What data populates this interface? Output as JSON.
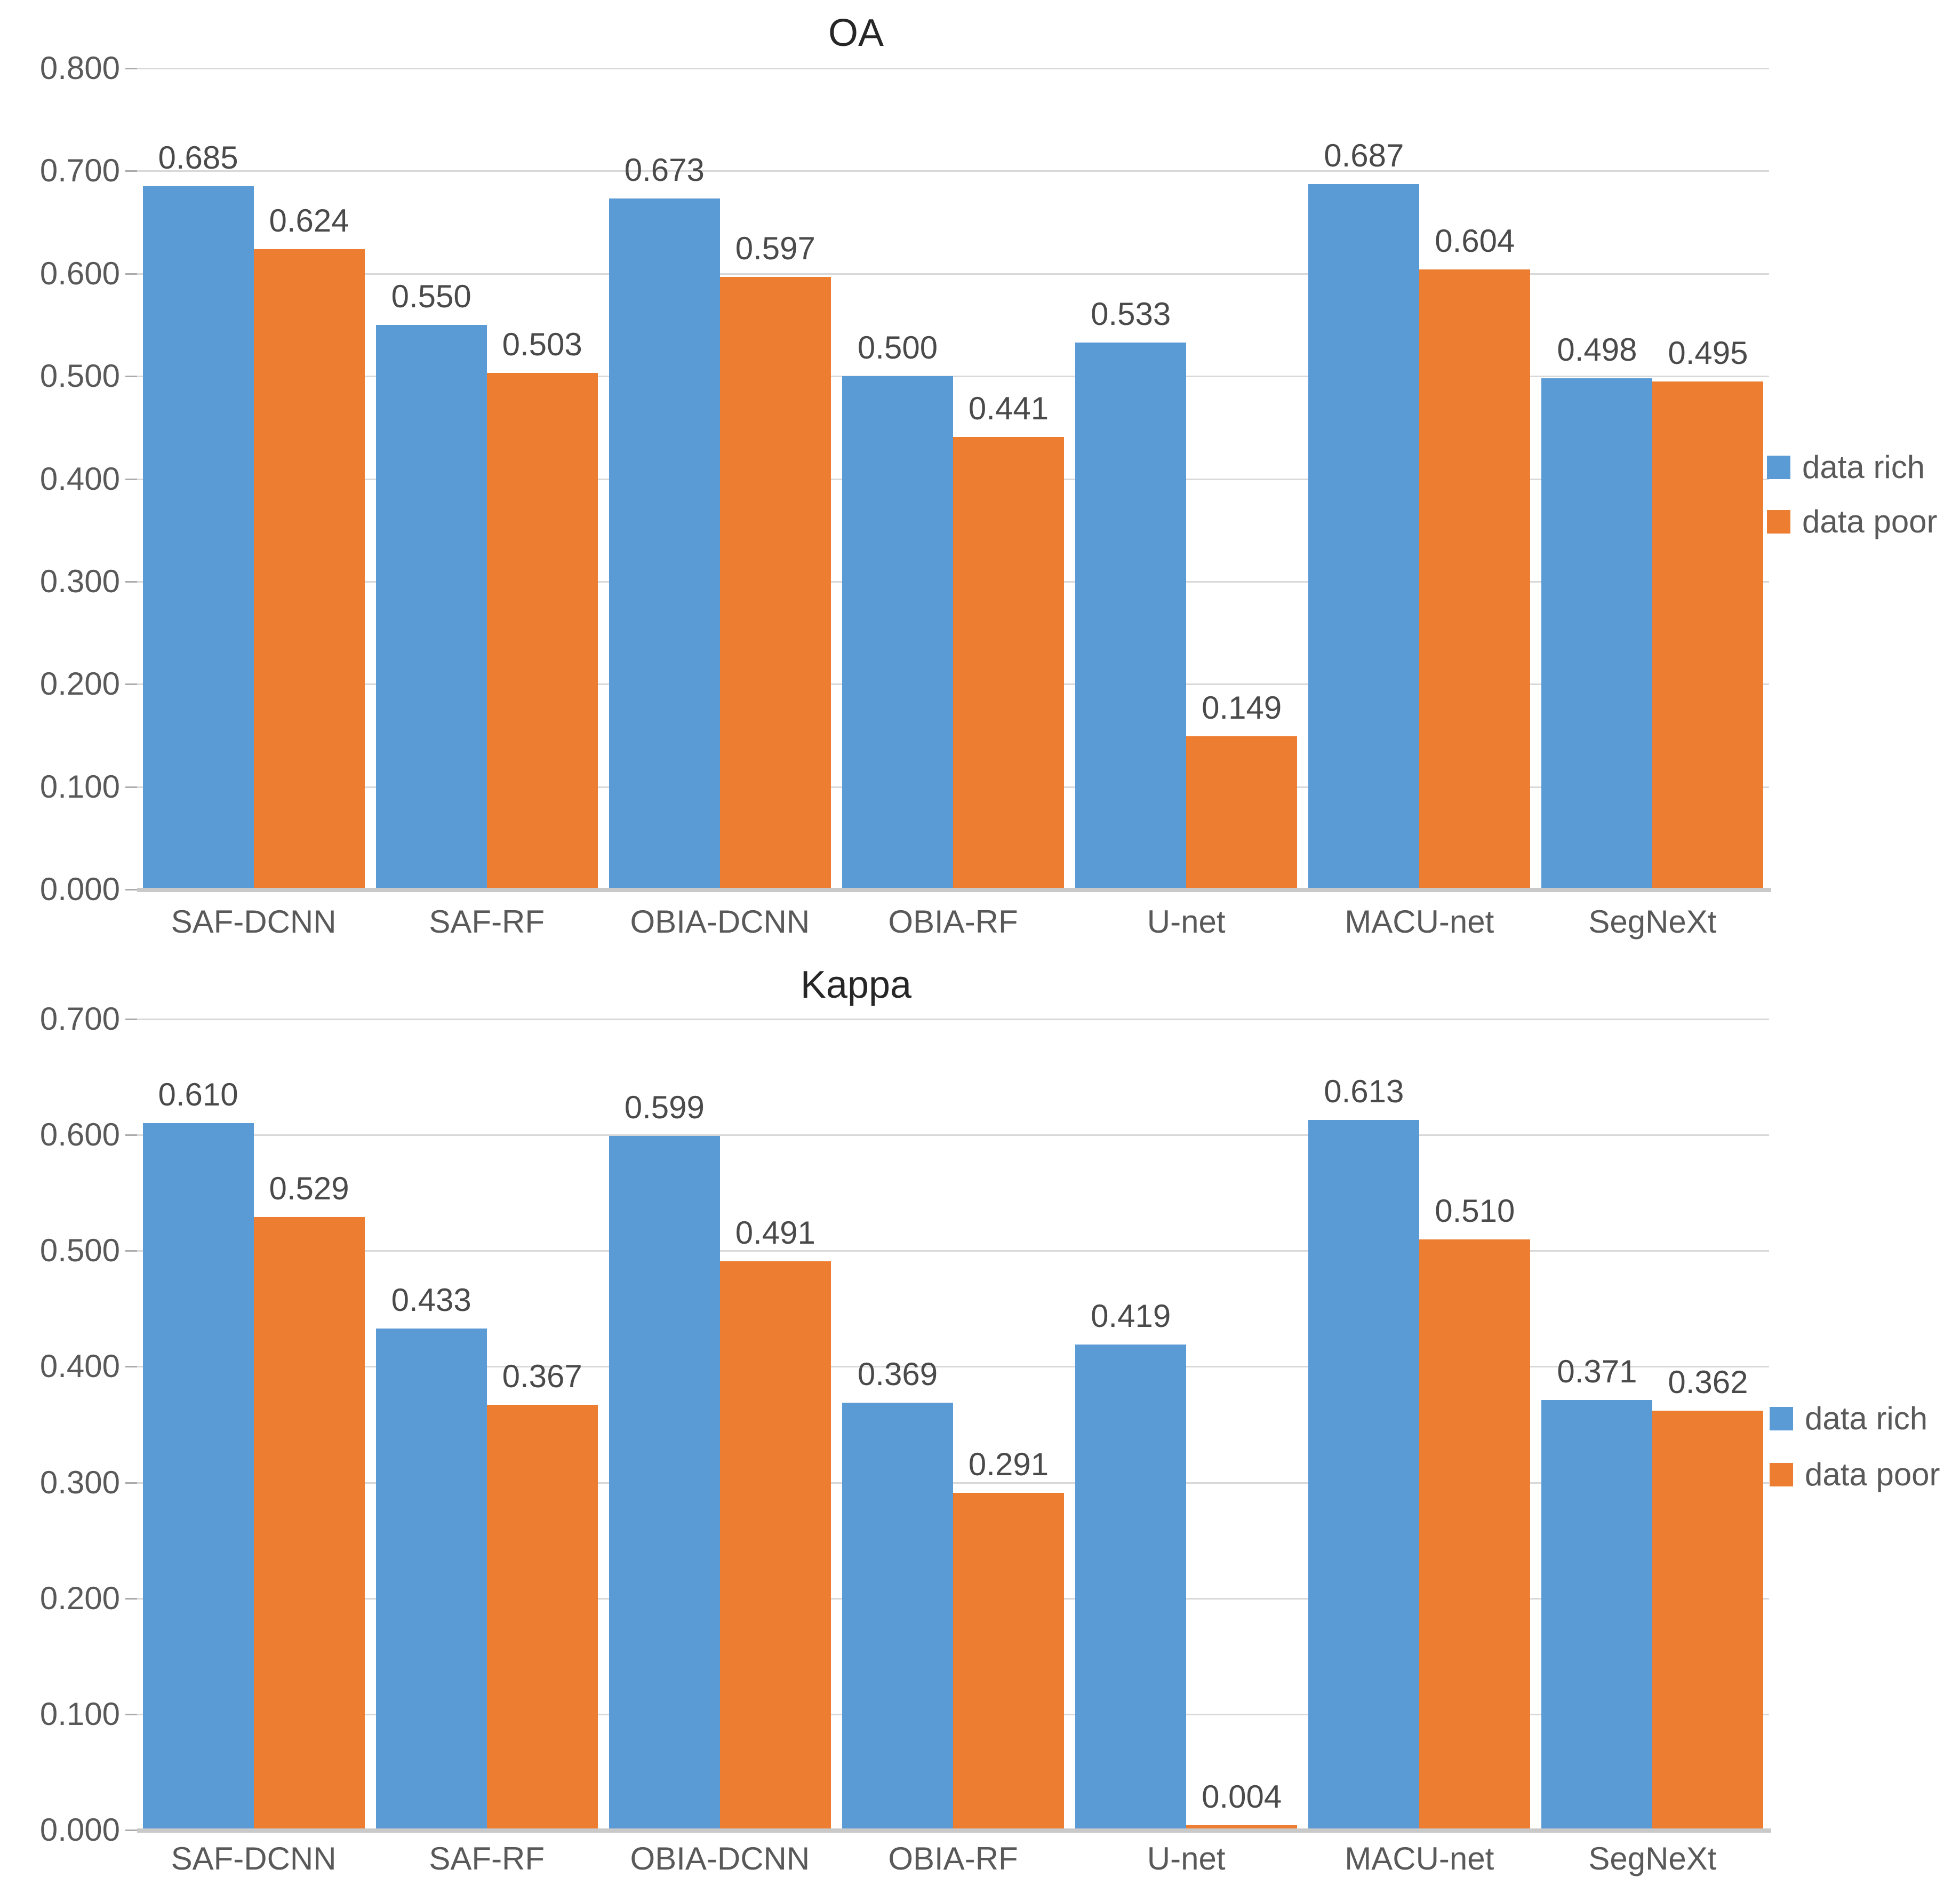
{
  "chart_data": [
    {
      "type": "bar",
      "title": "OA",
      "categories": [
        "SAF-DCNN",
        "SAF-RF",
        "OBIA-DCNN",
        "OBIA-RF",
        "U-net",
        "MACU-net",
        "SegNeXt"
      ],
      "series": [
        {
          "name": "data rich",
          "color": "#5B9BD5",
          "values": [
            0.685,
            0.55,
            0.673,
            0.5,
            0.533,
            0.687,
            0.498
          ]
        },
        {
          "name": "data poor",
          "color": "#ED7D31",
          "values": [
            0.624,
            0.503,
            0.597,
            0.441,
            0.149,
            0.604,
            0.495
          ]
        }
      ],
      "ylim": [
        0,
        0.8
      ],
      "ystep": 0.1,
      "grid": true,
      "legend_position": "right",
      "value_label_decimals": 3,
      "tick_label_decimals": 3
    },
    {
      "type": "bar",
      "title": "Kappa",
      "categories": [
        "SAF-DCNN",
        "SAF-RF",
        "OBIA-DCNN",
        "OBIA-RF",
        "U-net",
        "MACU-net",
        "SegNeXt"
      ],
      "series": [
        {
          "name": "data rich",
          "color": "#5B9BD5",
          "values": [
            0.61,
            0.433,
            0.599,
            0.369,
            0.419,
            0.613,
            0.371
          ]
        },
        {
          "name": "data poor",
          "color": "#ED7D31",
          "values": [
            0.529,
            0.367,
            0.491,
            0.291,
            0.004,
            0.51,
            0.362
          ]
        }
      ],
      "ylim": [
        0,
        0.7
      ],
      "ystep": 0.1,
      "grid": true,
      "legend_position": "right",
      "value_label_decimals": 3,
      "tick_label_decimals": 3
    }
  ],
  "style_colors": {
    "grid": "#D9D9D9",
    "axis": "#C9C9C9",
    "tick": "#ABABAB",
    "axis_text": "#595959",
    "title_text": "#262626"
  }
}
